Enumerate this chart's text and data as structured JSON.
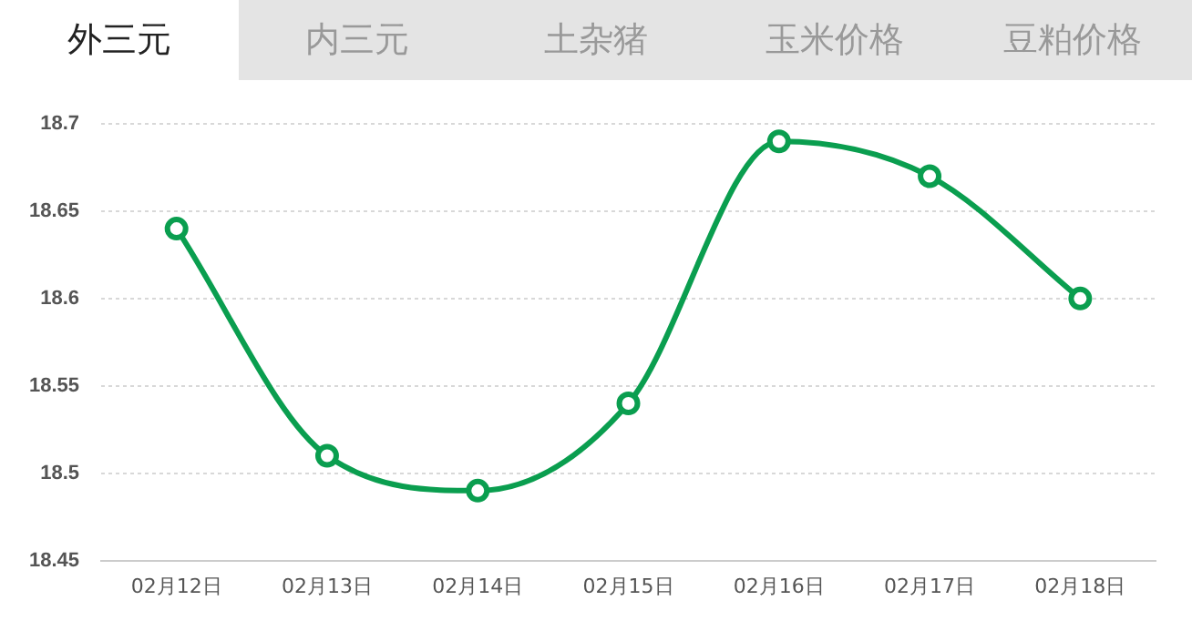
{
  "chart_data": {
    "type": "line",
    "annotations": [
      "外三元",
      "内三元",
      "土杂猪",
      "玉米价格",
      "豆粕价格"
    ],
    "categories": [
      "02月12日",
      "02月13日",
      "02月14日",
      "02月15日",
      "02月16日",
      "02月17日",
      "02月18日"
    ],
    "series": [
      {
        "color": "#0a9e4f",
        "values": [
          18.64,
          18.51,
          18.49,
          18.54,
          18.69,
          18.67,
          18.6
        ]
      }
    ],
    "ylim": [
      18.45,
      18.7
    ],
    "yticks": [
      18.45,
      18.5,
      18.55,
      18.6,
      18.65,
      18.7
    ],
    "grid": "y",
    "legend": false,
    "marker": "circle",
    "line_style": "solid"
  }
}
